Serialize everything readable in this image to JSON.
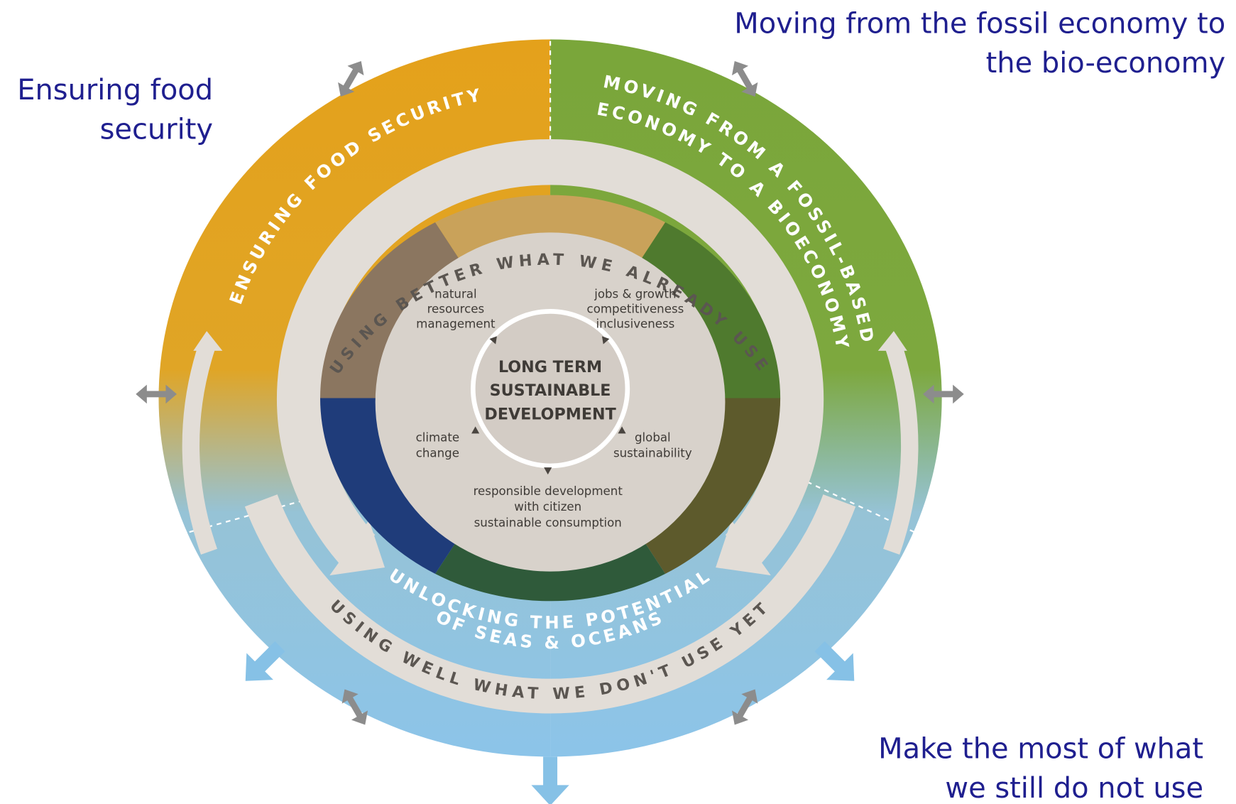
{
  "annotations": {
    "top_right": [
      "Moving from the fossil economy to",
      "the bio-economy"
    ],
    "top_left": [
      "Ensuring food",
      "security"
    ],
    "bottom_right": [
      "Make the most of what",
      "we still do not use"
    ]
  },
  "outer_ring": {
    "left": "ENSURING FOOD SECURITY",
    "right": [
      "MOVING FROM A FOSSIL-BASED",
      "ECONOMY TO A BIOECONOMY"
    ],
    "bottom": [
      "UNLOCKING THE POTENTIAL",
      "OF SEAS & OCEANS"
    ]
  },
  "inner_ring": {
    "top": "USING BETTER WHAT WE ALREADY USE",
    "bottom": "USING WELL WHAT WE DON'T USE YET"
  },
  "center": {
    "title": [
      "LONG TERM",
      "SUSTAINABLE",
      "DEVELOPMENT"
    ],
    "items": [
      {
        "lines": [
          "natural",
          "resources",
          "management"
        ]
      },
      {
        "lines": [
          "jobs & growth",
          "competitiveness",
          "inclusiveness"
        ]
      },
      {
        "lines": [
          "climate",
          "change"
        ]
      },
      {
        "lines": [
          "global",
          "sustainability"
        ]
      },
      {
        "lines": [
          "responsible development",
          "with citizen",
          "sustainable consumption"
        ]
      }
    ]
  }
}
